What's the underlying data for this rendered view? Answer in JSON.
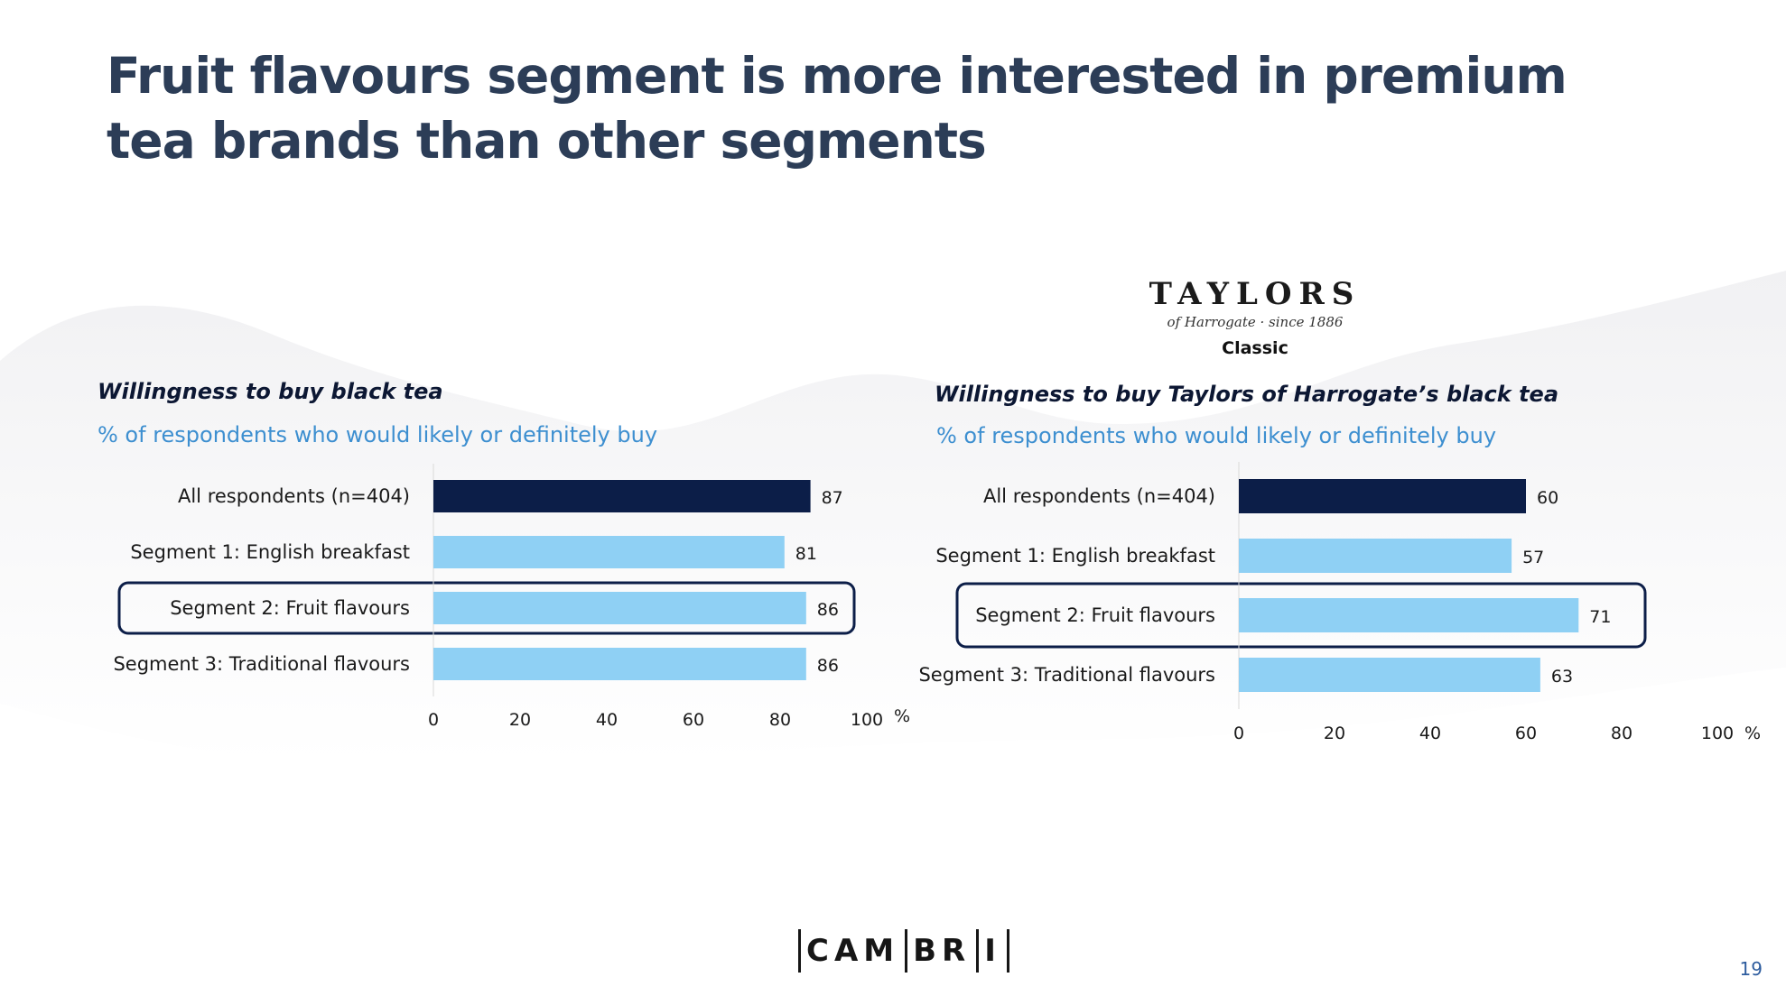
{
  "title": "Fruit flavours segment is more interested in premium tea brands than other segments",
  "colors": {
    "title": "#2c3d57",
    "heading": "#0c1733",
    "subtitle": "#3d8fd0",
    "bar_highlight": "#0c1e48",
    "bar_default": "#8fd0f4",
    "callout_border": "#0c1e48"
  },
  "logo": {
    "wordmark": "TAYLORS",
    "tagline": "of Harrogate · since 1886",
    "variant": "Classic"
  },
  "chart_data": [
    {
      "type": "bar",
      "orientation": "horizontal",
      "title": "Willingness to buy black tea",
      "subtitle": "% of respondents who would likely or definitely buy",
      "categories": [
        "All respondents (n=404)",
        "Segment 1: English breakfast",
        "Segment 2: Fruit flavours",
        "Segment 3: Traditional flavours"
      ],
      "values": [
        87,
        81,
        86,
        86
      ],
      "value_labels": [
        "87",
        "81",
        "86",
        "86"
      ],
      "highlighted_bar": 0,
      "callout_category": 2,
      "xlim": [
        0,
        100
      ],
      "xticks": [
        "0",
        "20",
        "40",
        "60",
        "80",
        "100"
      ],
      "unit_label": "%"
    },
    {
      "type": "bar",
      "orientation": "horizontal",
      "title": "Willingness to buy Taylors of Harrogate’s black tea",
      "subtitle": "% of respondents who would likely or definitely buy",
      "categories": [
        "All respondents (n=404)",
        "Segment 1: English breakfast",
        "Segment 2: Fruit flavours",
        "Segment 3: Traditional flavours"
      ],
      "values": [
        60,
        57,
        71,
        63
      ],
      "value_labels": [
        "60",
        "57",
        "71",
        "63"
      ],
      "highlighted_bar": 0,
      "callout_category": 2,
      "xlim": [
        0,
        100
      ],
      "xticks": [
        "0",
        "20",
        "40",
        "60",
        "80",
        "100"
      ],
      "unit_label": "%"
    }
  ],
  "footer": {
    "brand_parts": [
      "CAM",
      "BR",
      "I"
    ],
    "page_number": "19"
  }
}
